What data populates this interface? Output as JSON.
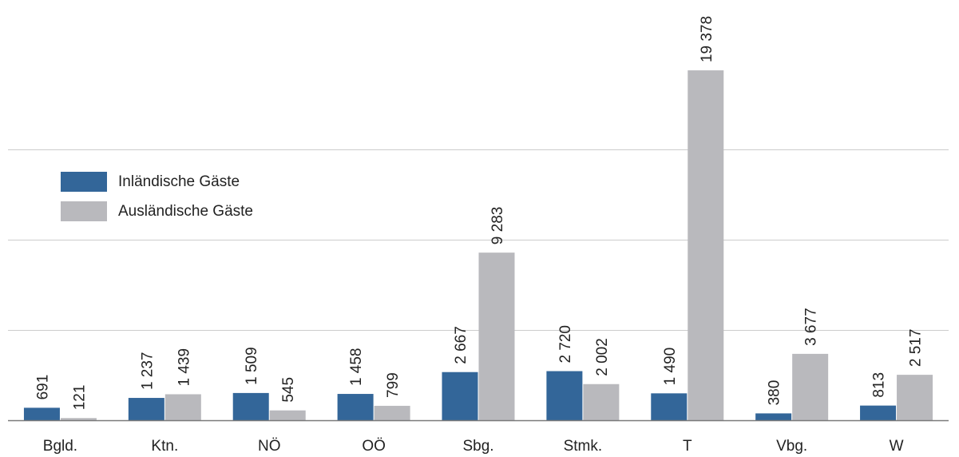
{
  "chart_data": {
    "type": "bar",
    "categories": [
      "Bgld.",
      "Ktn.",
      "NÖ",
      "OÖ",
      "Sbg.",
      "Stmk.",
      "T",
      "Vbg.",
      "W"
    ],
    "series": [
      {
        "name": "Inländische Gäste",
        "color": "#336699",
        "values": [
          691,
          1237,
          1509,
          1458,
          2667,
          2720,
          1490,
          380,
          813
        ],
        "labels": [
          "691",
          "1 237",
          "1 509",
          "1 458",
          "2 667",
          "2 720",
          "1 490",
          "380",
          "813"
        ]
      },
      {
        "name": "Ausländische Gäste",
        "color": "#b9b9bd",
        "values": [
          121,
          1439,
          545,
          799,
          9283,
          2002,
          19378,
          3677,
          2517
        ],
        "labels": [
          "121",
          "1 439",
          "545",
          "799",
          "9 283",
          "2 002",
          "19 378",
          "3 677",
          "2 517"
        ]
      }
    ],
    "title": "",
    "xlabel": "",
    "ylabel": "",
    "ylim": [
      0,
      23000
    ],
    "gridlines": [
      5000,
      10000,
      15000
    ],
    "legend_position": "upper-left",
    "axis_color": "#7a7a7a",
    "grid_color": "#cccccc"
  }
}
